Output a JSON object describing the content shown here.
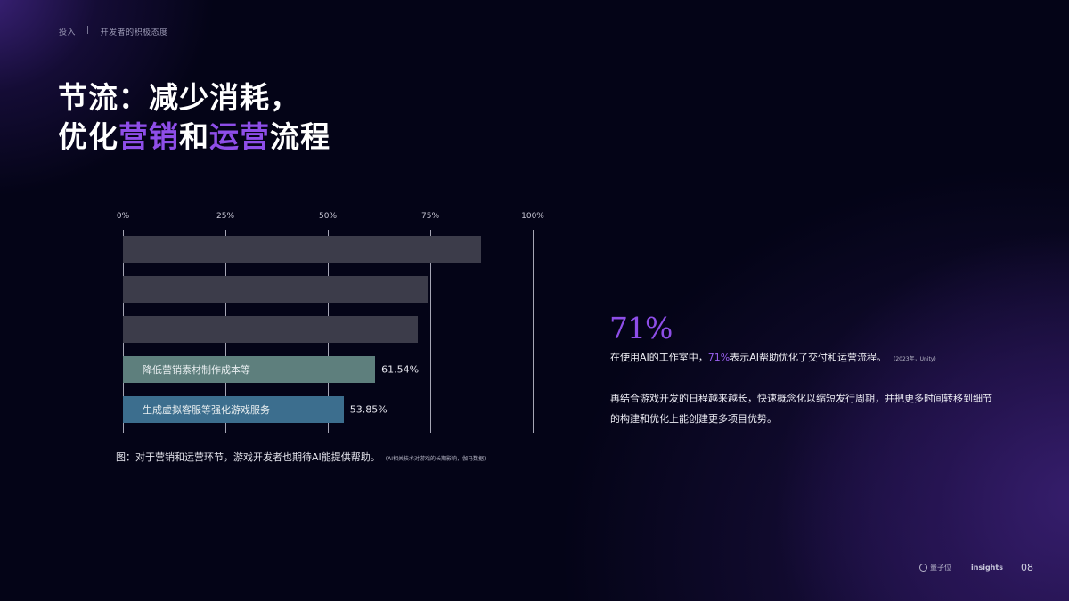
{
  "breadcrumb": {
    "section": "投入",
    "separator": "|",
    "topic": "开发者的积极态度"
  },
  "title": {
    "line1": "节流：减少消耗，",
    "line2_parts": [
      {
        "text": "优化",
        "highlight": false
      },
      {
        "text": "营销",
        "highlight": true
      },
      {
        "text": "和",
        "highlight": false
      },
      {
        "text": "运营",
        "highlight": true
      },
      {
        "text": "流程",
        "highlight": false
      }
    ]
  },
  "colors": {
    "accent": "#8e4ee8",
    "background": "#040417",
    "bar_gray": "#3c3c4a",
    "bar_teal": "#5e7f7d",
    "bar_blue": "#3c6e8e",
    "gridline": "#dcdceb"
  },
  "chart_data": {
    "type": "bar",
    "orientation": "horizontal",
    "title": "",
    "xlabel": "",
    "ylabel": "",
    "xlim": [
      0,
      100
    ],
    "tick_labels": [
      "0%",
      "25%",
      "50%",
      "75%",
      "100%"
    ],
    "ticks": [
      0,
      25,
      50,
      75,
      100
    ],
    "grid": true,
    "categories": [
      "",
      "",
      "",
      "降低营销素材制作成本等",
      "生成虚拟客服等强化游戏服务"
    ],
    "values": [
      87.4,
      74.5,
      72.0,
      61.54,
      53.85
    ],
    "value_labels": [
      "",
      "",
      "",
      "61.54%",
      "53.85%"
    ],
    "bar_colors": [
      "#3c3c4a",
      "#3c3c4a",
      "#3c3c4a",
      "#5e7f7d",
      "#3c6e8e"
    ],
    "legend": null
  },
  "caption": {
    "text": "图：对于营销和运营环节，游戏开发者也期待AI能提供帮助。",
    "source": "(AI相关技术对游戏的长期影响，伽马数据)"
  },
  "highlight_stat": {
    "value": "71%",
    "desc_before": "在使用AI的工作室中，",
    "desc_highlight": "71%",
    "desc_after": "表示AI帮助优化了交付和运营流程。",
    "source": "(2023年，Unity)"
  },
  "paragraph": "再结合游戏开发的日程越来越长，快速概念化以缩短发行周期，并把更多时间转移到细节的构建和优化上能创建更多项目优势。",
  "footer": {
    "brand": "量子位",
    "sub_brand": "insights",
    "page_number": "08"
  }
}
